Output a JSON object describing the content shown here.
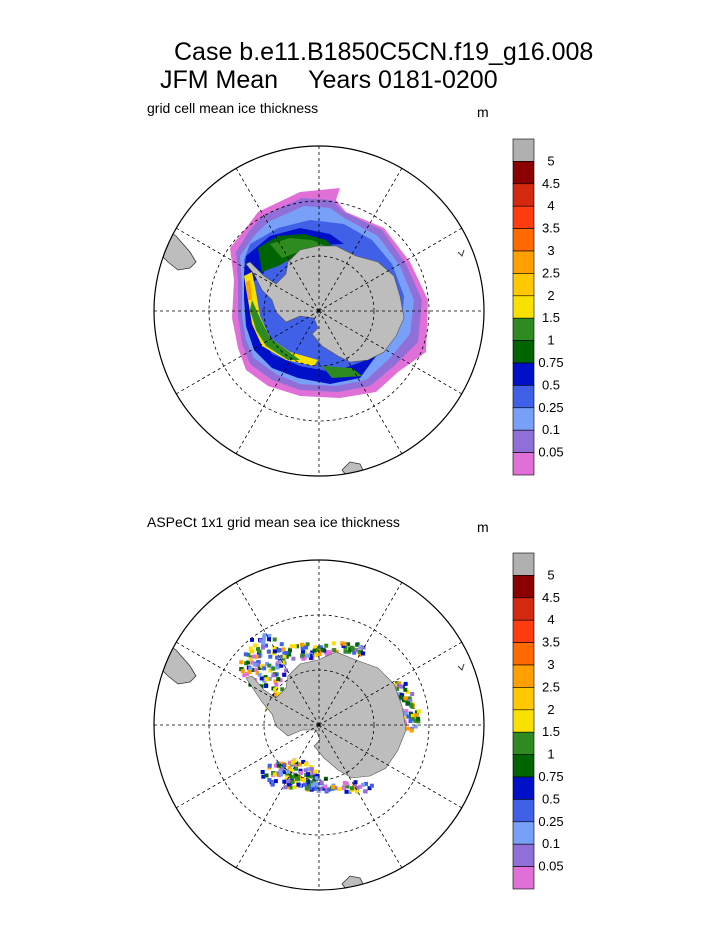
{
  "title": {
    "line1": "Case b.e11.B1850C5CN.f19_g16.008",
    "season": "JFM Mean",
    "years": "Years 0181-0200"
  },
  "panels": [
    {
      "label": "grid cell mean ice thickness",
      "unit": "m"
    },
    {
      "label": "ASPeCt 1x1 grid mean sea ice thickness",
      "unit": "m"
    }
  ],
  "legend": {
    "labels": [
      "5",
      "4.5",
      "4",
      "3.5",
      "3",
      "2.5",
      "2",
      "1.5",
      "1",
      "0.75",
      "0.5",
      "0.25",
      "0.1",
      "0.05"
    ],
    "colors": [
      "#b0b0b0",
      "#8b0000",
      "#d42810",
      "#ff3c10",
      "#ff6a00",
      "#ffa000",
      "#ffc800",
      "#f8e000",
      "#2e8b20",
      "#006400",
      "#0010c8",
      "#4060e8",
      "#78a0f8",
      "#9070d8",
      "#e070d8"
    ]
  },
  "colors": {
    "land": "#bdbdbd",
    "background": "#ffffff"
  }
}
